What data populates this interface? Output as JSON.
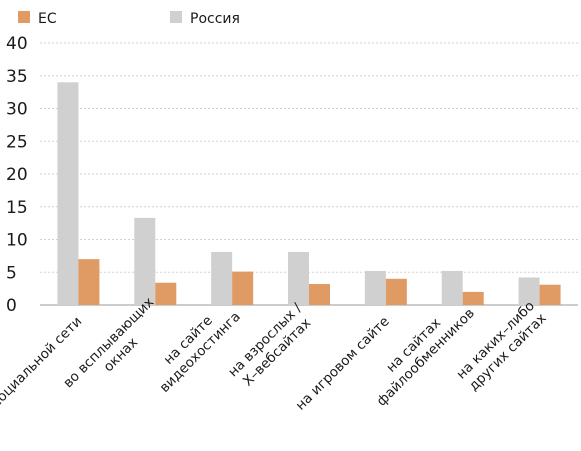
{
  "chart_data": {
    "type": "bar",
    "categories": [
      [
        "в социальной сети"
      ],
      [
        "во всплывающих",
        "окнах"
      ],
      [
        "на сайте",
        "видеохостинга"
      ],
      [
        "на взрослых /",
        "X–вебсайтах"
      ],
      [
        "на игровом сайте"
      ],
      [
        "на сайтах",
        "файлообменников"
      ],
      [
        "на каких–либо",
        "других сайтах"
      ]
    ],
    "series": [
      {
        "name": "Россия",
        "color": "#d0d0d1",
        "values": [
          34,
          13.3,
          8.1,
          8.1,
          5.2,
          5.2,
          4.2
        ]
      },
      {
        "name": "ЕС",
        "color": "#e09a64",
        "values": [
          7,
          3.4,
          5.1,
          3.2,
          4,
          2,
          3.1
        ]
      }
    ],
    "legend": [
      {
        "name": "ЕС",
        "color": "#e09a64"
      },
      {
        "name": "Россия",
        "color": "#d0d0d1"
      }
    ],
    "yticks": [
      0,
      5,
      10,
      15,
      20,
      25,
      30,
      35,
      40
    ],
    "ylim": [
      0,
      40
    ],
    "grid": true,
    "legend_position": "top-left"
  }
}
